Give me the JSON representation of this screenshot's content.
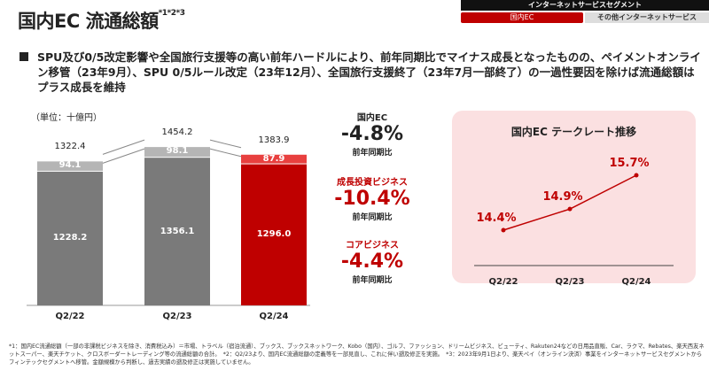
{
  "header": {
    "title": "国内EC 流通総額",
    "title_sup": "*1*2*3",
    "segment_header": "インターネットサービスセグメント",
    "segment_tabs": [
      {
        "label": "国内EC",
        "active": true
      },
      {
        "label": "その他インターネットサービス",
        "active": false
      }
    ]
  },
  "summary": "SPU及び0/5改定影響や全国旅行支援等の高い前年ハードルにより、前年同期比でマイナス成長となったものの、ペイメントオンライン移管（23年9月）、SPU 0/5ルール改定（23年12月）、全国旅行支援終了（23年7月一部終了）の一過性要因を除けば流通総額はプラス成長を維持",
  "chart_data": [
    {
      "type": "bar",
      "stacked": true,
      "unit_label": "（単位：十億円）",
      "categories": [
        "Q2/22",
        "Q2/23",
        "Q2/24"
      ],
      "series": [
        {
          "values": [
            1228.2,
            1356.1,
            1296.0
          ]
        },
        {
          "values": [
            94.1,
            98.1,
            87.9
          ]
        }
      ],
      "totals": [
        1322.4,
        1454.2,
        1383.9
      ],
      "colors": {
        "base": "#7a7a7a",
        "top": "#b5b5b5",
        "base_highlight": "#bf0000",
        "top_highlight": "#e8403f"
      }
    },
    {
      "type": "line",
      "title": "国内EC テークレート推移",
      "categories": [
        "Q2/22",
        "Q2/23",
        "Q2/24"
      ],
      "values": [
        14.4,
        14.9,
        15.7
      ],
      "labels": [
        "14.4%",
        "14.9%",
        "15.7%"
      ],
      "color": "#bf0000"
    }
  ],
  "stats": [
    {
      "name": "国内EC",
      "value": "-4.8%",
      "sub": "前年同期比",
      "color": "#222"
    },
    {
      "name": "成長投資ビジネス",
      "value": "-10.4%",
      "sub": "前年同期比",
      "color": "#bf0000"
    },
    {
      "name": "コアビジネス",
      "value": "-4.4%",
      "sub": "前年同期比",
      "color": "#bf0000"
    }
  ],
  "footnote": "*1：国内EC流通総額（一部の非課税ビジネスを除き、消費税込み）＝市場、トラベル（宿泊流通）、ブックス、ブックスネットワーク、Kobo（国内）、ゴルフ、ファッション、ドリームビジネス、ビューティ、Rakuten24などの日用品直販、Car、ラクマ、Rebates、楽天西友ネットスーパー、楽天チケット、クロスボーダートレーディング等の流通総額の合計。　*2：Q2/23より、国内EC流通総額の定義等を一部見直し、これに伴い遡及修正を実施。　*3：2023年9月1日より、楽天ペイ（オンライン決済）事業をインターネットサービスセグメントからフィンテックセグメントへ移管。金額規模から判断し、過去実績の遡及修正は実施していません。"
}
